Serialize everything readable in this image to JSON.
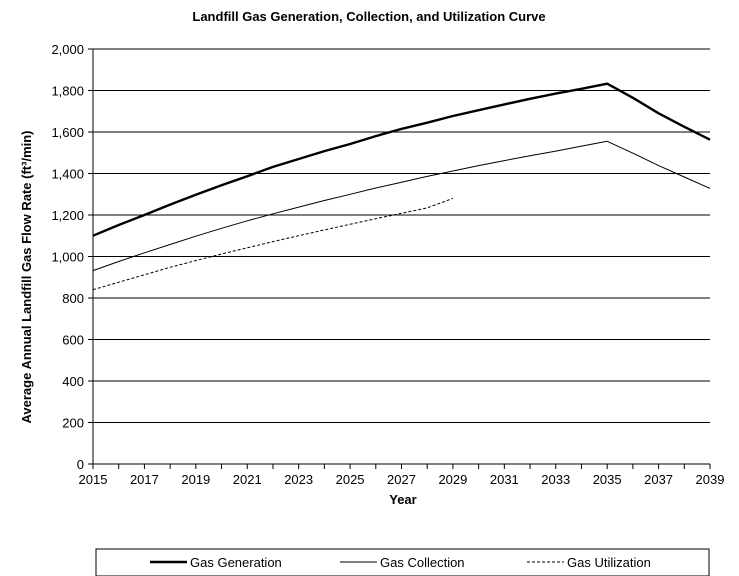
{
  "chart_data": {
    "type": "line",
    "title": "Landfill Gas Generation, Collection, and Utilization Curve",
    "xlabel": "Year",
    "ylabel": "Average Annual Landfill Gas Flow Rate (ft³/min)",
    "xlim": [
      2015,
      2039
    ],
    "ylim": [
      0,
      2000
    ],
    "x_ticks": [
      "2015",
      "2017",
      "2019",
      "2021",
      "2023",
      "2025",
      "2027",
      "2029",
      "2031",
      "2033",
      "2035",
      "2037",
      "2039"
    ],
    "y_ticks": [
      "0",
      "200",
      "400",
      "600",
      "800",
      "1,000",
      "1,200",
      "1,400",
      "1,600",
      "1,800",
      "2,000"
    ],
    "grid": "horizontal",
    "legend_position": "bottom",
    "series": [
      {
        "name": "Gas Generation",
        "style": "thick-solid",
        "x": [
          2015,
          2016,
          2017,
          2018,
          2019,
          2020,
          2021,
          2022,
          2023,
          2024,
          2025,
          2026,
          2027,
          2028,
          2029,
          2030,
          2031,
          2032,
          2033,
          2034,
          2035,
          2036,
          2037,
          2038,
          2039
        ],
        "values": [
          1100,
          1152,
          1200,
          1250,
          1298,
          1343,
          1387,
          1432,
          1470,
          1508,
          1542,
          1580,
          1615,
          1645,
          1677,
          1705,
          1733,
          1760,
          1785,
          1808,
          1833,
          1765,
          1690,
          1625,
          1563
        ]
      },
      {
        "name": "Gas Collection",
        "style": "thin-solid",
        "x": [
          2015,
          2016,
          2017,
          2018,
          2019,
          2020,
          2021,
          2022,
          2023,
          2024,
          2025,
          2026,
          2027,
          2028,
          2029,
          2030,
          2031,
          2032,
          2033,
          2034,
          2035,
          2036,
          2037,
          2038,
          2039
        ],
        "values": [
          932,
          976,
          1018,
          1058,
          1098,
          1136,
          1172,
          1206,
          1238,
          1270,
          1300,
          1330,
          1358,
          1386,
          1412,
          1438,
          1462,
          1486,
          1508,
          1532,
          1555,
          1498,
          1438,
          1383,
          1328
        ]
      },
      {
        "name": "Gas Utilization",
        "style": "dashed",
        "x": [
          2015,
          2016,
          2017,
          2018,
          2019,
          2020,
          2021,
          2022,
          2023,
          2024,
          2025,
          2026,
          2027,
          2028,
          2029
        ],
        "values": [
          840,
          876,
          912,
          948,
          980,
          1012,
          1042,
          1072,
          1100,
          1128,
          1155,
          1182,
          1208,
          1234,
          1280
        ]
      }
    ]
  }
}
